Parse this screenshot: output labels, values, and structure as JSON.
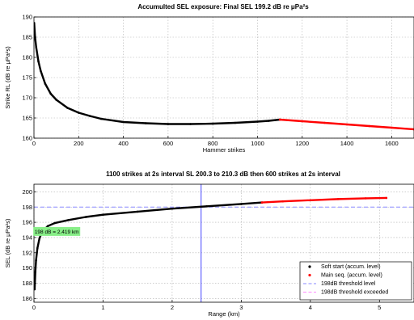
{
  "chart_data": [
    {
      "type": "line",
      "title": "Accumulted SEL exposure: Final SEL 199.2 dB re μPa²s",
      "xlabel": "Hammer strikes",
      "ylabel": "Strike RL (dB re μPa²s)",
      "xlim": [
        0,
        1700
      ],
      "ylim": [
        160,
        190
      ],
      "xticks": [
        0,
        200,
        400,
        600,
        800,
        1000,
        1200,
        1400,
        1600
      ],
      "yticks": [
        160,
        165,
        170,
        175,
        180,
        185,
        190
      ],
      "grid": true,
      "series": [
        {
          "color": "#000000",
          "x": [
            1,
            5,
            10,
            20,
            30,
            50,
            75,
            100,
            150,
            200,
            250,
            300,
            400,
            500,
            600,
            700,
            800,
            900,
            1000,
            1050,
            1100
          ],
          "values": [
            188.5,
            185.0,
            182.5,
            179.0,
            176.7,
            173.5,
            171.0,
            169.5,
            167.5,
            166.3,
            165.5,
            164.8,
            164.0,
            163.7,
            163.5,
            163.5,
            163.6,
            163.8,
            164.1,
            164.3,
            164.6
          ]
        },
        {
          "color": "#ff0000",
          "x": [
            1100,
            1200,
            1300,
            1400,
            1500,
            1600,
            1700
          ],
          "values": [
            164.6,
            164.2,
            163.8,
            163.4,
            163.0,
            162.6,
            162.2
          ]
        }
      ]
    },
    {
      "type": "line",
      "title": "1100 strikes at 2s interval  SL 200.3 to 210.3 dB then 600 strikes at 2s interval",
      "xlabel": "Range (km)",
      "ylabel": "SEL (dB re μPa²s)",
      "xlim": [
        0,
        5.5
      ],
      "ylim": [
        185.5,
        201
      ],
      "xticks": [
        0,
        1,
        2,
        3,
        4,
        5
      ],
      "yticks": [
        186,
        188,
        190,
        192,
        194,
        196,
        198,
        200
      ],
      "grid": true,
      "legend": "bottom-right",
      "series": [
        {
          "name": "Soft start (accum. level)",
          "color": "#000000",
          "x": [
            0.01,
            0.02,
            0.03,
            0.05,
            0.08,
            0.12,
            0.2,
            0.3,
            0.5,
            0.75,
            1.0,
            1.5,
            2.0,
            2.5,
            3.0,
            3.3
          ],
          "values": [
            187.2,
            189.5,
            191.0,
            192.6,
            193.9,
            194.8,
            195.5,
            195.9,
            196.3,
            196.7,
            197.0,
            197.4,
            197.8,
            198.1,
            198.4,
            198.6
          ]
        },
        {
          "name": "Main seq. (accum. level)",
          "color": "#ff0000",
          "x": [
            3.3,
            3.6,
            4.0,
            4.4,
            4.8,
            5.1
          ],
          "values": [
            198.6,
            198.75,
            198.9,
            199.05,
            199.15,
            199.2
          ]
        }
      ],
      "threshold": {
        "label": "198dB threshold level",
        "value": 198,
        "color": "#8888ff"
      },
      "threshold_exceeded": {
        "label": "198dB threshold exceeded",
        "color": "#ff88ff"
      },
      "range_marker": {
        "x": 2.419,
        "color": "#4444ff"
      },
      "annotation": {
        "text": "198 dB = 2.419 km",
        "x": 0.33,
        "y": 194.8,
        "bg": "#88ee88"
      }
    }
  ]
}
